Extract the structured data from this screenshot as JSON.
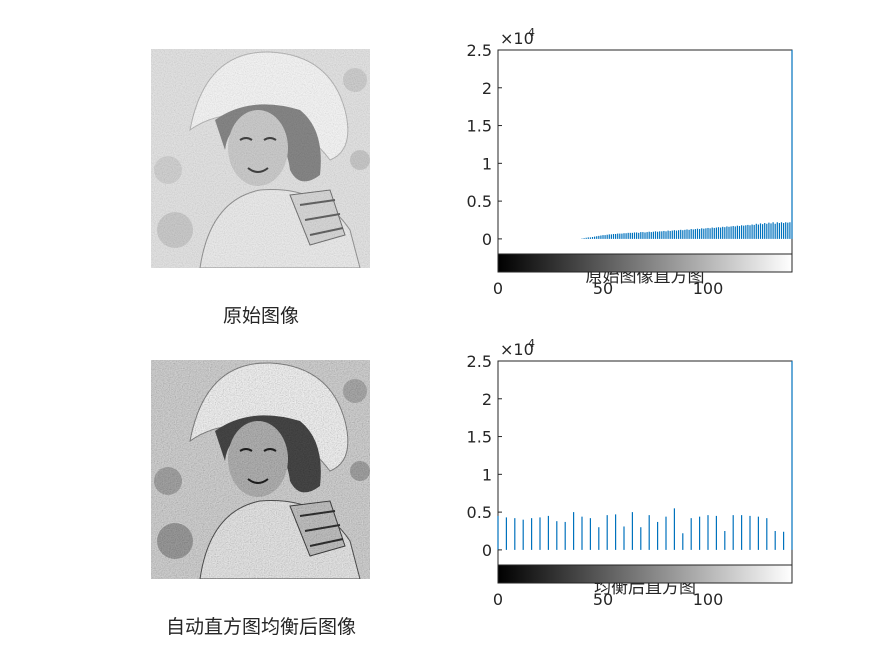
{
  "figure": {
    "panels": [
      {
        "caption": "原始图像",
        "image_name": "original-image"
      },
      {
        "caption": "自动直方图均衡后图像",
        "image_name": "equalized-image"
      }
    ]
  },
  "chart_data": [
    {
      "type": "bar",
      "title": "原始图像直方图",
      "exponent_label": "×10",
      "exponent_power": "4",
      "xlim": [
        0,
        140
      ],
      "ylim": [
        -0.2,
        2.5
      ],
      "x_ticks": [
        0,
        50,
        100
      ],
      "y_ticks": [
        0,
        0.5,
        1,
        1.5,
        2,
        2.5
      ],
      "y_tick_labels": [
        "0",
        "0.5",
        "1",
        "1.5",
        "2",
        "2.5"
      ],
      "colorbar": "grayscale",
      "bar_color": "#0072BD",
      "x": [
        40,
        41,
        42,
        43,
        44,
        45,
        46,
        47,
        48,
        49,
        50,
        51,
        52,
        53,
        54,
        55,
        56,
        57,
        58,
        59,
        60,
        61,
        62,
        63,
        64,
        65,
        66,
        67,
        68,
        69,
        70,
        71,
        72,
        73,
        74,
        75,
        76,
        77,
        78,
        79,
        80,
        81,
        82,
        83,
        84,
        85,
        86,
        87,
        88,
        89,
        90,
        91,
        92,
        93,
        94,
        95,
        96,
        97,
        98,
        99,
        100,
        101,
        102,
        103,
        104,
        105,
        106,
        107,
        108,
        109,
        110,
        111,
        112,
        113,
        114,
        115,
        116,
        117,
        118,
        119,
        120,
        121,
        122,
        123,
        124,
        125,
        126,
        127,
        128,
        129,
        130,
        131,
        132,
        133,
        134,
        135,
        136,
        137,
        138,
        139,
        140
      ],
      "values": [
        0.005,
        0.01,
        0.015,
        0.02,
        0.02,
        0.025,
        0.03,
        0.035,
        0.04,
        0.045,
        0.05,
        0.05,
        0.055,
        0.06,
        0.06,
        0.065,
        0.065,
        0.07,
        0.07,
        0.07,
        0.075,
        0.075,
        0.08,
        0.08,
        0.08,
        0.085,
        0.085,
        0.08,
        0.09,
        0.09,
        0.085,
        0.09,
        0.095,
        0.09,
        0.095,
        0.1,
        0.095,
        0.1,
        0.1,
        0.105,
        0.1,
        0.11,
        0.105,
        0.11,
        0.115,
        0.11,
        0.115,
        0.12,
        0.115,
        0.12,
        0.125,
        0.12,
        0.13,
        0.125,
        0.13,
        0.135,
        0.13,
        0.14,
        0.135,
        0.14,
        0.145,
        0.14,
        0.15,
        0.145,
        0.15,
        0.155,
        0.15,
        0.16,
        0.155,
        0.165,
        0.16,
        0.165,
        0.17,
        0.165,
        0.175,
        0.17,
        0.18,
        0.175,
        0.18,
        0.185,
        0.18,
        0.19,
        0.185,
        0.2,
        0.19,
        0.205,
        0.195,
        0.21,
        0.2,
        0.215,
        0.205,
        0.22,
        0.2,
        0.22,
        0.21,
        0.22,
        0.21,
        0.22,
        0.215,
        0.22,
        2.5
      ]
    },
    {
      "type": "bar",
      "title": "均衡后直方图",
      "exponent_label": "×10",
      "exponent_power": "4",
      "xlim": [
        0,
        140
      ],
      "ylim": [
        -0.2,
        2.5
      ],
      "x_ticks": [
        0,
        50,
        100
      ],
      "y_ticks": [
        0,
        0.5,
        1,
        1.5,
        2,
        2.5
      ],
      "y_tick_labels": [
        "0",
        "0.5",
        "1",
        "1.5",
        "2",
        "2.5"
      ],
      "colorbar": "grayscale",
      "bar_color": "#0072BD",
      "x": [
        0,
        4,
        8,
        12,
        16,
        20,
        24,
        28,
        32,
        36,
        40,
        44,
        48,
        52,
        56,
        60,
        64,
        68,
        72,
        76,
        80,
        84,
        88,
        92,
        96,
        100,
        104,
        108,
        112,
        116,
        120,
        124,
        128,
        132,
        136,
        140
      ],
      "values": [
        0.45,
        0.43,
        0.42,
        0.4,
        0.42,
        0.43,
        0.45,
        0.38,
        0.37,
        0.5,
        0.44,
        0.42,
        0.3,
        0.46,
        0.47,
        0.31,
        0.5,
        0.3,
        0.46,
        0.37,
        0.44,
        0.55,
        0.22,
        0.42,
        0.44,
        0.46,
        0.45,
        0.25,
        0.46,
        0.46,
        0.45,
        0.44,
        0.42,
        0.25,
        0.24,
        2.5
      ]
    }
  ]
}
